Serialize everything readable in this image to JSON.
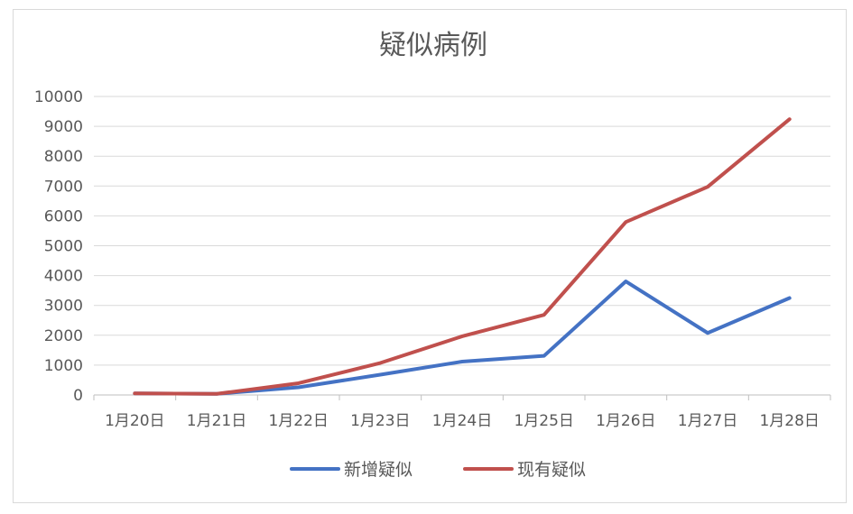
{
  "chart_data": {
    "type": "line",
    "title": "疑似病例",
    "categories": [
      "1月20日",
      "1月21日",
      "1月22日",
      "1月23日",
      "1月24日",
      "1月25日",
      "1月26日",
      "1月27日",
      "1月28日"
    ],
    "series": [
      {
        "name": "新增疑似",
        "color": "#4472C4",
        "values": [
          54,
          37,
          257,
          680,
          1118,
          1309,
          3806,
          2077,
          3248
        ]
      },
      {
        "name": "现有疑似",
        "color": "#C0504D",
        "values": [
          54,
          37,
          393,
          1072,
          1965,
          2684,
          5794,
          6973,
          9239
        ]
      }
    ],
    "ylim": [
      0,
      10000
    ],
    "yticks": [
      "0",
      "1000",
      "2000",
      "3000",
      "4000",
      "5000",
      "6000",
      "7000",
      "8000",
      "9000",
      "10000"
    ],
    "grid": true,
    "legend": "bottom"
  }
}
